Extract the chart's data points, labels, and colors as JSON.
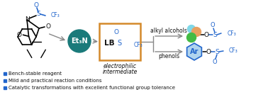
{
  "bg_color": "#ffffff",
  "teal_circle_color": "#1a7a7a",
  "teal_circle_text": "Et₃N",
  "lb_box_edge": "#d4892a",
  "blue_text_color": "#2266cc",
  "bullet_color": "#2266cc",
  "alkyl_label": "alkyl alcohols",
  "phenols_label": "phenols",
  "electrophilic_line1": "electrophilic",
  "electrophilic_line2": "intermediate",
  "bullet1": "Bench-stable reagent",
  "bullet2": "Mild and practical reaction conditions",
  "bullet3": "Catalytic transformations with excellent functional group tolerance",
  "arrow_color": "#888888",
  "orange_sphere_color": "#e8a060",
  "cyan_sphere_color": "#80d8e8",
  "green_sphere_color": "#44bb44",
  "ar_ring_color": "#b0d4ee",
  "ar_ring_edge": "#2266cc",
  "black": "#111111"
}
